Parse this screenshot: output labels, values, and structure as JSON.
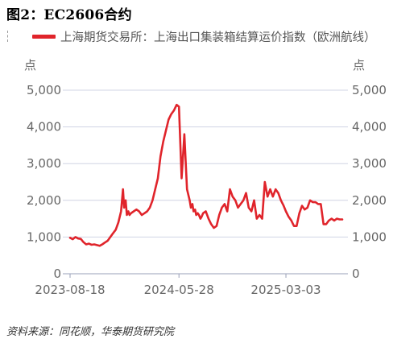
{
  "figure": {
    "title": "图2：EC2606合约",
    "source": "资料来源：同花顺，华泰期货研究院"
  },
  "colors": {
    "series": "#e0242b",
    "grid": "#d0d4e4",
    "axis_text": "#666666"
  },
  "chart_data": {
    "type": "line",
    "xlabel": "",
    "ylabel_left": "点",
    "ylabel_right": "点",
    "ylim": [
      0,
      5000
    ],
    "y_ticks": [
      0,
      1000,
      2000,
      3000,
      4000,
      5000
    ],
    "y_tick_labels": [
      "0",
      "1,000",
      "2,000",
      "3,000",
      "4,000",
      "5,000"
    ],
    "x_ticks": [
      "2023-08-18",
      "2024-05-28",
      "2025-03-03"
    ],
    "grid": true,
    "legend_position": "top",
    "series": [
      {
        "name": "上海期货交易所：上海出口集装箱结算运价指数（欧洲航线）",
        "color": "#e0242b",
        "x": [
          "2023-08-18",
          "2023-08-25",
          "2023-09-01",
          "2023-09-08",
          "2023-09-15",
          "2023-09-22",
          "2023-09-29",
          "2023-10-06",
          "2023-10-13",
          "2023-10-20",
          "2023-10-27",
          "2023-11-03",
          "2023-11-10",
          "2023-11-17",
          "2023-11-24",
          "2023-12-01",
          "2023-12-08",
          "2023-12-15",
          "2023-12-22",
          "2023-12-29",
          "2024-01-03",
          "2024-01-06",
          "2024-01-10",
          "2024-01-13",
          "2024-01-17",
          "2024-01-20",
          "2024-01-24",
          "2024-01-31",
          "2024-02-07",
          "2024-02-14",
          "2024-02-21",
          "2024-02-28",
          "2024-03-06",
          "2024-03-13",
          "2024-03-20",
          "2024-03-27",
          "2024-04-03",
          "2024-04-10",
          "2024-04-17",
          "2024-04-24",
          "2024-05-01",
          "2024-05-08",
          "2024-05-15",
          "2024-05-22",
          "2024-05-28",
          "2024-06-04",
          "2024-06-11",
          "2024-06-18",
          "2024-06-25",
          "2024-06-28",
          "2024-07-02",
          "2024-07-05",
          "2024-07-09",
          "2024-07-12",
          "2024-07-16",
          "2024-07-19",
          "2024-07-23",
          "2024-07-26",
          "2024-07-30",
          "2024-08-06",
          "2024-08-13",
          "2024-08-20",
          "2024-08-27",
          "2024-09-03",
          "2024-09-10",
          "2024-09-17",
          "2024-09-24",
          "2024-10-01",
          "2024-10-08",
          "2024-10-15",
          "2024-10-22",
          "2024-10-29",
          "2024-11-05",
          "2024-11-12",
          "2024-11-19",
          "2024-11-26",
          "2024-12-03",
          "2024-12-10",
          "2024-12-17",
          "2024-12-24",
          "2024-12-31",
          "2025-01-07",
          "2025-01-14",
          "2025-01-21",
          "2025-01-28",
          "2025-02-04",
          "2025-02-11",
          "2025-02-18",
          "2025-02-25",
          "2025-03-03",
          "2025-03-10",
          "2025-03-17",
          "2025-03-24",
          "2025-03-31",
          "2025-04-07",
          "2025-04-14",
          "2025-04-21",
          "2025-04-28",
          "2025-05-05",
          "2025-05-12",
          "2025-05-19",
          "2025-05-26",
          "2025-06-02",
          "2025-06-09",
          "2025-06-16",
          "2025-06-23",
          "2025-06-30",
          "2025-07-07",
          "2025-07-14",
          "2025-07-21",
          "2025-07-28"
        ],
        "values": [
          980,
          940,
          1000,
          960,
          950,
          860,
          800,
          820,
          790,
          800,
          780,
          760,
          800,
          850,
          900,
          1000,
          1100,
          1200,
          1400,
          1700,
          2300,
          1800,
          2000,
          1600,
          1700,
          1600,
          1650,
          1700,
          1750,
          1700,
          1600,
          1650,
          1700,
          1800,
          2000,
          2300,
          2600,
          3200,
          3600,
          3900,
          4200,
          4350,
          4450,
          4600,
          4550,
          2600,
          3800,
          2300,
          2000,
          1800,
          1900,
          1700,
          1750,
          1600,
          1650,
          1600,
          1500,
          1550,
          1650,
          1700,
          1500,
          1350,
          1250,
          1300,
          1600,
          1800,
          1900,
          1700,
          2300,
          2100,
          2000,
          1800,
          1900,
          2000,
          2200,
          1800,
          1700,
          2000,
          1500,
          1600,
          1500,
          2500,
          2100,
          2300,
          2100,
          2300,
          2200,
          2000,
          1850,
          1700,
          1550,
          1450,
          1300,
          1300,
          1650,
          1850,
          1750,
          1800,
          2000,
          1950,
          1950,
          1900,
          1900,
          1350,
          1350,
          1450,
          1500,
          1450,
          1500,
          1480,
          1480
        ]
      }
    ]
  }
}
